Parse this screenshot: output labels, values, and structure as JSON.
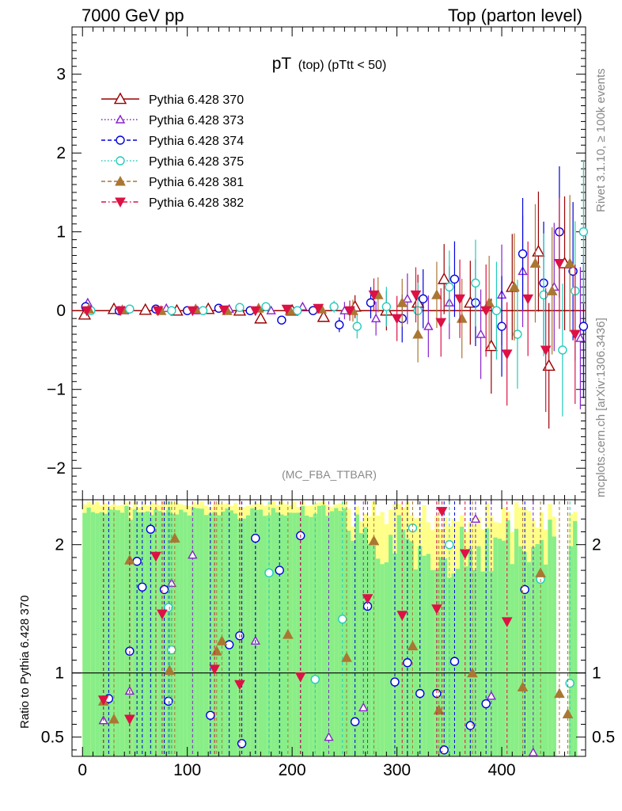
{
  "header": {
    "left": "7000 GeV pp",
    "right": "Top (parton level)"
  },
  "side_labels": {
    "rivet": "Rivet 3.1.10, ≥ 100k events",
    "mcplots": "mcplots.cern.ch [arXiv:1306.3436]"
  },
  "colors": {
    "band_yellow": "#ffff88",
    "band_green": "#88ee88",
    "s370": "#990000",
    "s373": "#8822cc",
    "s374": "#0000dd",
    "s375": "#22ccbb",
    "s381": "#aa7733",
    "s382": "#dd1144"
  },
  "chart_data": [
    {
      "type": "scatter",
      "title_main": "pT",
      "title_sub": "(top) (pTtt < 50)",
      "watermark": "(MC_FBA_TTBAR)",
      "xlim": [
        -10,
        480
      ],
      "ylim": [
        -2.4,
        3.6
      ],
      "y_ticks": [
        -2,
        -1,
        0,
        1,
        2,
        3
      ],
      "y_tick_labels": [
        "−2",
        "−1",
        "0",
        "1",
        "2",
        "3"
      ],
      "legend": [
        {
          "name": "Pythia 6.428 370",
          "marker": "triangle-up-open",
          "line": "solid"
        },
        {
          "name": "Pythia 6.428 373",
          "marker": "triangle-up-open-small",
          "line": "dotted"
        },
        {
          "name": "Pythia 6.428 374",
          "marker": "circle-open",
          "line": "dashed"
        },
        {
          "name": "Pythia 6.428 375",
          "marker": "circle-open",
          "line": "dotted"
        },
        {
          "name": "Pythia 6.428 381",
          "marker": "triangle-up-filled",
          "line": "dashed"
        },
        {
          "name": "Pythia 6.428 382",
          "marker": "triangle-down-filled",
          "line": "dashdot"
        }
      ],
      "legend_position": "top-left",
      "series": [
        {
          "name": "Pythia 6.428 370",
          "points": [
            [
              2,
              -0.05
            ],
            [
              30,
              0.02
            ],
            [
              60,
              0.01
            ],
            [
              90,
              0.0
            ],
            [
              120,
              0.02
            ],
            [
              150,
              0.0
            ],
            [
              170,
              -0.1
            ],
            [
              200,
              0.0
            ],
            [
              230,
              -0.08
            ],
            [
              260,
              0.05
            ],
            [
              290,
              0.0
            ],
            [
              320,
              0.1
            ],
            [
              345,
              0.4
            ],
            [
              370,
              0.1
            ],
            [
              390,
              -0.45
            ],
            [
              410,
              0.3
            ],
            [
              435,
              0.75
            ],
            [
              445,
              -0.7
            ],
            [
              460,
              0.6
            ]
          ]
        },
        {
          "name": "Pythia 6.428 373",
          "points": [
            [
              5,
              0.1
            ],
            [
              40,
              0.0
            ],
            [
              80,
              0.03
            ],
            [
              110,
              0.0
            ],
            [
              140,
              0.02
            ],
            [
              180,
              0.0
            ],
            [
              210,
              0.05
            ],
            [
              250,
              0.0
            ],
            [
              280,
              -0.1
            ],
            [
              310,
              0.15
            ],
            [
              330,
              -0.2
            ],
            [
              350,
              0.1
            ],
            [
              380,
              -0.3
            ],
            [
              400,
              0.2
            ],
            [
              420,
              0.5
            ],
            [
              450,
              0.3
            ],
            [
              475,
              -0.35
            ]
          ]
        },
        {
          "name": "Pythia 6.428 374",
          "points": [
            [
              3,
              0.05
            ],
            [
              35,
              0.0
            ],
            [
              70,
              0.02
            ],
            [
              100,
              0.0
            ],
            [
              130,
              0.03
            ],
            [
              160,
              0.0
            ],
            [
              190,
              -0.12
            ],
            [
              220,
              0.0
            ],
            [
              245,
              -0.18
            ],
            [
              275,
              0.1
            ],
            [
              305,
              -0.1
            ],
            [
              325,
              0.15
            ],
            [
              355,
              0.4
            ],
            [
              375,
              0.1
            ],
            [
              400,
              -0.2
            ],
            [
              420,
              0.72
            ],
            [
              440,
              0.35
            ],
            [
              455,
              1.0
            ],
            [
              468,
              0.5
            ],
            [
              478,
              -0.2
            ]
          ]
        },
        {
          "name": "Pythia 6.428 375",
          "points": [
            [
              8,
              0.0
            ],
            [
              45,
              0.02
            ],
            [
              85,
              0.0
            ],
            [
              115,
              0.0
            ],
            [
              150,
              0.04
            ],
            [
              175,
              0.05
            ],
            [
              205,
              0.0
            ],
            [
              240,
              0.05
            ],
            [
              262,
              -0.2
            ],
            [
              290,
              0.05
            ],
            [
              320,
              0.0
            ],
            [
              350,
              0.3
            ],
            [
              375,
              0.35
            ],
            [
              395,
              0.0
            ],
            [
              415,
              -0.3
            ],
            [
              440,
              0.2
            ],
            [
              458,
              -0.5
            ],
            [
              470,
              0.25
            ],
            [
              478,
              1.0
            ]
          ]
        },
        {
          "name": "Pythia 6.428 381",
          "points": [
            [
              6,
              0.02
            ],
            [
              38,
              0.01
            ],
            [
              75,
              0.0
            ],
            [
              108,
              0.02
            ],
            [
              138,
              0.0
            ],
            [
              168,
              0.03
            ],
            [
              198,
              0.0
            ],
            [
              228,
              0.02
            ],
            [
              258,
              0.0
            ],
            [
              282,
              0.2
            ],
            [
              305,
              0.1
            ],
            [
              320,
              -0.3
            ],
            [
              338,
              0.2
            ],
            [
              362,
              -0.1
            ],
            [
              388,
              0.1
            ],
            [
              412,
              0.3
            ],
            [
              432,
              0.6
            ],
            [
              448,
              0.25
            ],
            [
              465,
              0.6
            ]
          ]
        },
        {
          "name": "Pythia 6.428 382",
          "points": [
            [
              4,
              0.0
            ],
            [
              36,
              0.0
            ],
            [
              72,
              0.0
            ],
            [
              105,
              0.0
            ],
            [
              135,
              0.01
            ],
            [
              165,
              0.0
            ],
            [
              195,
              0.02
            ],
            [
              225,
              0.03
            ],
            [
              255,
              0.0
            ],
            [
              278,
              0.2
            ],
            [
              300,
              -0.1
            ],
            [
              318,
              0.2
            ],
            [
              342,
              -0.15
            ],
            [
              360,
              0.15
            ],
            [
              385,
              0.0
            ],
            [
              405,
              -0.55
            ],
            [
              425,
              0.15
            ],
            [
              442,
              -0.5
            ],
            [
              455,
              0.6
            ],
            [
              470,
              -0.3
            ]
          ]
        }
      ]
    },
    {
      "type": "scatter",
      "ylabel": "Ratio to Pythia 6.428 370",
      "xlim": [
        -10,
        480
      ],
      "ylim": [
        0.35,
        2.35
      ],
      "reference": 1,
      "x_ticks": [
        0,
        100,
        200,
        300,
        400
      ],
      "x_tick_labels": [
        "0",
        "100",
        "200",
        "300",
        "400"
      ],
      "y_ticks": [
        0.5,
        1,
        2
      ],
      "y_tick_labels": [
        "0.5",
        "1",
        "2"
      ],
      "series": [
        {
          "name": "Pythia 6.428 373",
          "points": [
            [
              20,
              0.63
            ],
            [
              45,
              0.86
            ],
            [
              85,
              1.7
            ],
            [
              105,
              1.92
            ],
            [
              165,
              1.25
            ],
            [
              235,
              0.5
            ],
            [
              268,
              0.73
            ],
            [
              375,
              2.2
            ],
            [
              390,
              0.82
            ],
            [
              430,
              0.38
            ]
          ]
        },
        {
          "name": "Pythia 6.428 374",
          "points": [
            [
              25,
              0.8
            ],
            [
              45,
              1.17
            ],
            [
              52,
              1.87
            ],
            [
              57,
              1.67
            ],
            [
              65,
              2.12
            ],
            [
              78,
              1.65
            ],
            [
              82,
              0.78
            ],
            [
              122,
              0.67
            ],
            [
              140,
              1.22
            ],
            [
              150,
              1.29
            ],
            [
              152,
              0.45
            ],
            [
              165,
              2.05
            ],
            [
              188,
              1.8
            ],
            [
              208,
              2.07
            ],
            [
              260,
              0.62
            ],
            [
              272,
              1.52
            ],
            [
              298,
              0.93
            ],
            [
              310,
              1.08
            ],
            [
              322,
              0.84
            ],
            [
              338,
              0.84
            ],
            [
              345,
              0.4
            ],
            [
              355,
              1.09
            ],
            [
              370,
              0.59
            ],
            [
              385,
              0.76
            ],
            [
              422,
              1.65
            ]
          ]
        },
        {
          "name": "Pythia 6.428 375",
          "points": [
            [
              82,
              1.51
            ],
            [
              85,
              1.18
            ],
            [
              178,
              1.78
            ],
            [
              222,
              0.95
            ],
            [
              248,
              1.42
            ],
            [
              315,
              2.13
            ],
            [
              350,
              2.0
            ],
            [
              437,
              1.73
            ],
            [
              465,
              0.92
            ]
          ]
        },
        {
          "name": "Pythia 6.428 381",
          "points": [
            [
              20,
              0.78
            ],
            [
              30,
              0.64
            ],
            [
              45,
              1.88
            ],
            [
              83,
              1.02
            ],
            [
              88,
              2.05
            ],
            [
              128,
              1.17
            ],
            [
              133,
              1.25
            ],
            [
              196,
              1.3
            ],
            [
              252,
              1.12
            ],
            [
              278,
              2.03
            ],
            [
              315,
              1.21
            ],
            [
              340,
              0.71
            ],
            [
              372,
              1.0
            ],
            [
              420,
              0.89
            ],
            [
              437,
              1.78
            ],
            [
              455,
              0.84
            ],
            [
              463,
              0.68
            ]
          ]
        },
        {
          "name": "Pythia 6.428 382",
          "points": [
            [
              20,
              0.79
            ],
            [
              45,
              0.64
            ],
            [
              70,
              1.91
            ],
            [
              76,
              1.46
            ],
            [
              126,
              1.03
            ],
            [
              150,
              0.91
            ],
            [
              208,
              0.97
            ],
            [
              272,
              1.58
            ],
            [
              305,
              1.45
            ],
            [
              338,
              1.5
            ],
            [
              343,
              2.26
            ],
            [
              365,
              1.93
            ],
            [
              405,
              1.4
            ]
          ]
        }
      ]
    }
  ]
}
